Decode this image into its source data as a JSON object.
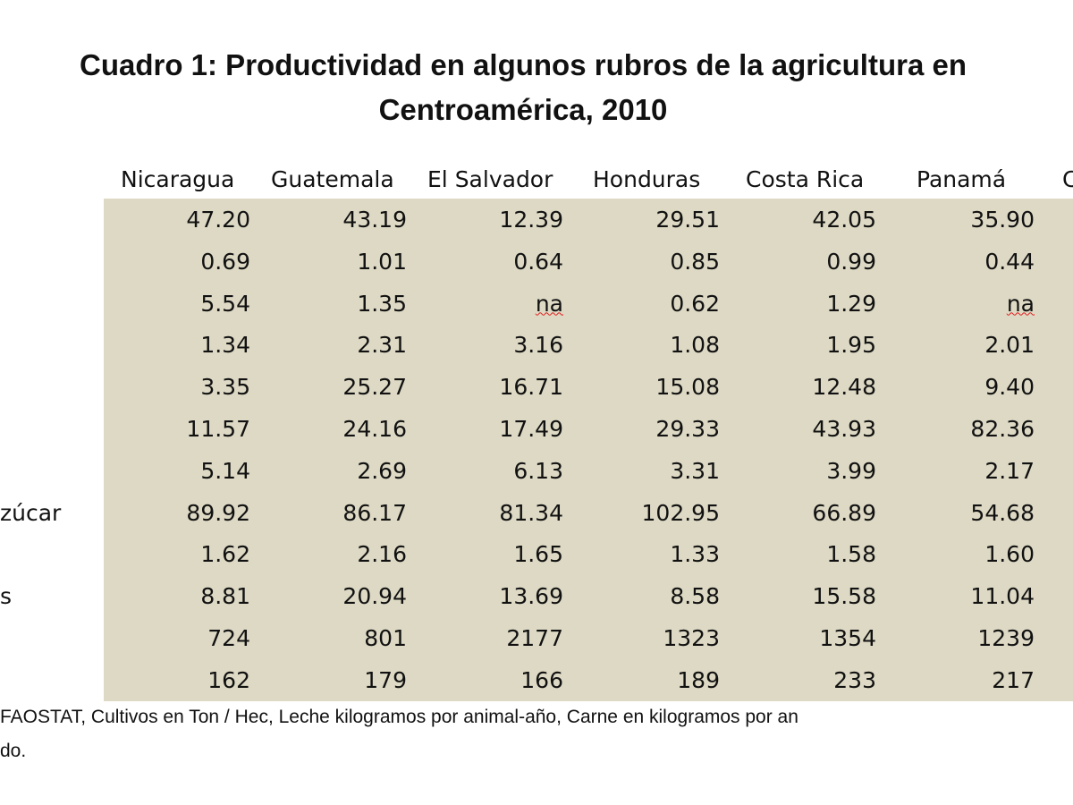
{
  "title_line1": "Cuadro 1: Productividad en algunos rubros de la agricultura en",
  "title_line2": "Centroamérica, 2010",
  "columns": [
    "Nicaragua",
    "Guatemala",
    "El Salvador",
    "Honduras",
    "Costa Rica",
    "Panamá",
    "C"
  ],
  "row_labels": [
    "",
    "",
    "",
    "",
    "",
    "",
    "",
    "zúcar",
    "",
    "s",
    "",
    ""
  ],
  "rows": [
    [
      "47.20",
      "43.19",
      "12.39",
      "29.51",
      "42.05",
      "35.90"
    ],
    [
      "0.69",
      "1.01",
      "0.64",
      "0.85",
      "0.99",
      "0.44"
    ],
    [
      "5.54",
      "1.35",
      "na",
      "0.62",
      "1.29",
      "na"
    ],
    [
      "1.34",
      "2.31",
      "3.16",
      "1.08",
      "1.95",
      "2.01"
    ],
    [
      "3.35",
      "25.27",
      "16.71",
      "15.08",
      "12.48",
      "9.40"
    ],
    [
      "11.57",
      "24.16",
      "17.49",
      "29.33",
      "43.93",
      "82.36"
    ],
    [
      "5.14",
      "2.69",
      "6.13",
      "3.31",
      "3.99",
      "2.17"
    ],
    [
      "89.92",
      "86.17",
      "81.34",
      "102.95",
      "66.89",
      "54.68"
    ],
    [
      "1.62",
      "2.16",
      "1.65",
      "1.33",
      "1.58",
      "1.60"
    ],
    [
      "8.81",
      "20.94",
      "13.69",
      "8.58",
      "15.58",
      "11.04"
    ],
    [
      "724",
      "801",
      "2177",
      "1323",
      "1354",
      "1239"
    ],
    [
      "162",
      "179",
      "166",
      "189",
      "233",
      "217"
    ]
  ],
  "note_line1": "FAOSTAT,  Cultivos en Ton / Hec, Leche kilogramos por animal-año, Carne en kilogramos por an",
  "note_line2": "do."
}
